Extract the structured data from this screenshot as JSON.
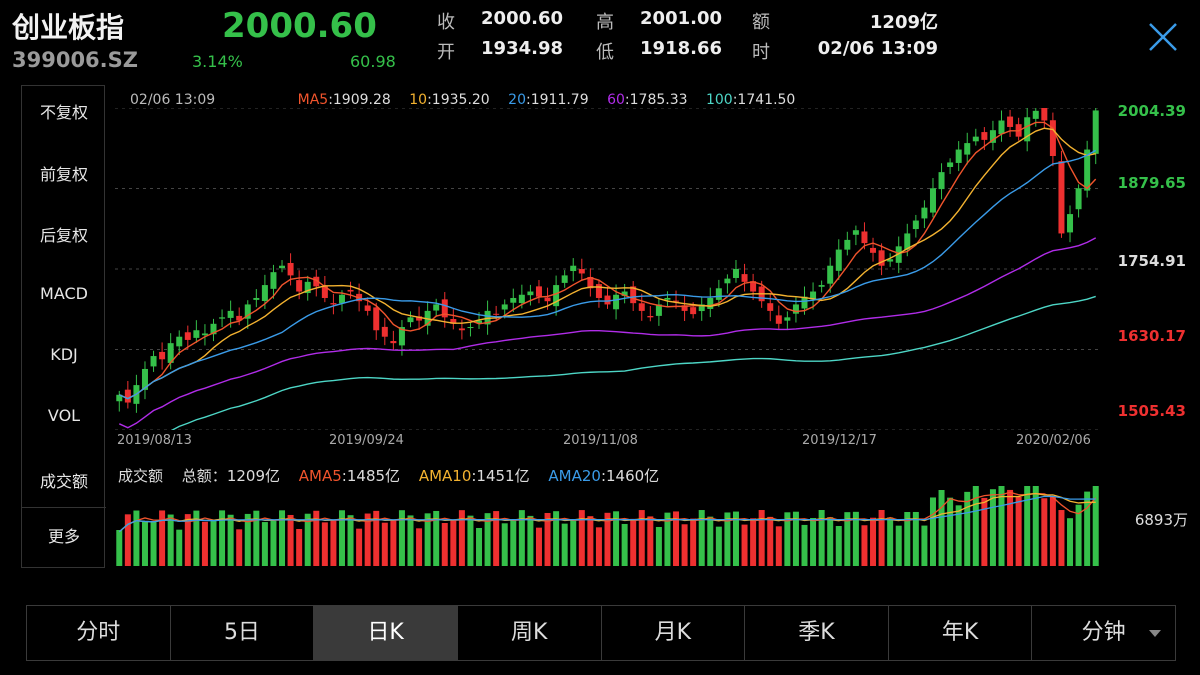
{
  "header": {
    "name": "创业板指",
    "code": "399006.SZ",
    "price": "2000.60",
    "change_pct": "3.14%",
    "change": "60.98",
    "quote": [
      {
        "label": "收",
        "value": "2000.60"
      },
      {
        "label": "高",
        "value": "2001.00"
      },
      {
        "label": "额",
        "value": "1209亿"
      },
      {
        "label": "开",
        "value": "1934.98"
      },
      {
        "label": "低",
        "value": "1918.66"
      },
      {
        "label": "时",
        "value": "02/06 13:09"
      }
    ]
  },
  "sidebar": {
    "items": [
      {
        "label": "不复权",
        "active": true
      },
      {
        "label": "前复权",
        "active": false
      },
      {
        "label": "后复权",
        "active": false
      },
      {
        "label": "MACD",
        "active": false
      },
      {
        "label": "KDJ",
        "active": false
      },
      {
        "label": "VOL",
        "active": false
      },
      {
        "label": "成交额",
        "active": true
      },
      {
        "label": "更多",
        "active": false
      }
    ]
  },
  "main_chart": {
    "time": "02/06 13:09",
    "ma": [
      {
        "name": "MA5",
        "value": ":1909.28",
        "color": "#f0542c"
      },
      {
        "name": "10",
        "value": ":1935.20",
        "color": "#f3b230"
      },
      {
        "name": "20",
        "value": ":1911.79",
        "color": "#3a9be8"
      },
      {
        "name": "60",
        "value": ":1785.33",
        "color": "#b02ce8"
      },
      {
        "name": "100",
        "value": ":1741.50",
        "color": "#4dd6c6"
      }
    ],
    "y_labels": [
      {
        "value": "2004.39",
        "color": "#35c04a"
      },
      {
        "value": "1879.65",
        "color": "#35c04a"
      },
      {
        "value": "1754.91",
        "color": "#dddddd"
      },
      {
        "value": "1630.17",
        "color": "#ee3030"
      },
      {
        "value": "1505.43",
        "color": "#ee3030"
      }
    ],
    "x_labels": [
      "2019/08/13",
      "2019/09/24",
      "2019/11/08",
      "2019/12/17",
      "2020/02/06"
    ]
  },
  "volume_chart": {
    "title": "成交额",
    "total_label": "总额：",
    "total_value": "1209亿",
    "ama": [
      {
        "name": "AMA5",
        "value": ":1485亿",
        "color": "#f0542c"
      },
      {
        "name": "AMA10",
        "value": ":1451亿",
        "color": "#f3b230"
      },
      {
        "name": "AMA20",
        "value": ":1460亿",
        "color": "#3a9be8"
      }
    ],
    "y_label": "6893万"
  },
  "tabs": [
    {
      "label": "分时",
      "active": false
    },
    {
      "label": "5日",
      "active": false
    },
    {
      "label": "日K",
      "active": true
    },
    {
      "label": "周K",
      "active": false
    },
    {
      "label": "月K",
      "active": false
    },
    {
      "label": "季K",
      "active": false
    },
    {
      "label": "年K",
      "active": false
    },
    {
      "label": "分钟",
      "active": false,
      "dropdown": true
    }
  ],
  "chart_data": {
    "type": "candlestick",
    "x_labels": [
      "2019/08/13",
      "2019/09/24",
      "2019/11/08",
      "2019/12/17",
      "2020/02/06"
    ],
    "y_ticks": [
      2004.39,
      1879.65,
      1754.91,
      1630.17,
      1505.43
    ],
    "ylim": [
      1505.43,
      2004.39
    ],
    "colors": {
      "up": "#35c04a",
      "down": "#ee3030"
    },
    "series": [
      {
        "name": "MA5",
        "last": 1909.28
      },
      {
        "name": "10",
        "last": 1935.2
      },
      {
        "name": "20",
        "last": 1911.79
      },
      {
        "name": "60",
        "last": 1785.33
      },
      {
        "name": "100",
        "last": 1741.5
      }
    ],
    "closes_approx": [
      1560,
      1548,
      1575,
      1600,
      1620,
      1615,
      1640,
      1650,
      1645,
      1660,
      1655,
      1670,
      1680,
      1690,
      1675,
      1700,
      1710,
      1730,
      1750,
      1760,
      1745,
      1720,
      1735,
      1728,
      1710,
      1700,
      1715,
      1720,
      1705,
      1690,
      1660,
      1650,
      1640,
      1665,
      1680,
      1675,
      1690,
      1700,
      1680,
      1670,
      1660,
      1665,
      1675,
      1690,
      1685,
      1700,
      1710,
      1715,
      1720,
      1712,
      1705,
      1730,
      1745,
      1760,
      1748,
      1725,
      1710,
      1700,
      1715,
      1720,
      1702,
      1690,
      1680,
      1700,
      1710,
      1705,
      1690,
      1685,
      1700,
      1710,
      1725,
      1740,
      1755,
      1735,
      1720,
      1705,
      1690,
      1670,
      1680,
      1700,
      1712,
      1720,
      1730,
      1760,
      1785,
      1800,
      1815,
      1795,
      1780,
      1760,
      1770,
      1790,
      1810,
      1830,
      1850,
      1880,
      1905,
      1920,
      1940,
      1950,
      1960,
      1955,
      1970,
      1985,
      1975,
      1960,
      1990,
      2000,
      1985,
      1930,
      1810,
      1840,
      1880,
      1940,
      2000.6
    ]
  }
}
